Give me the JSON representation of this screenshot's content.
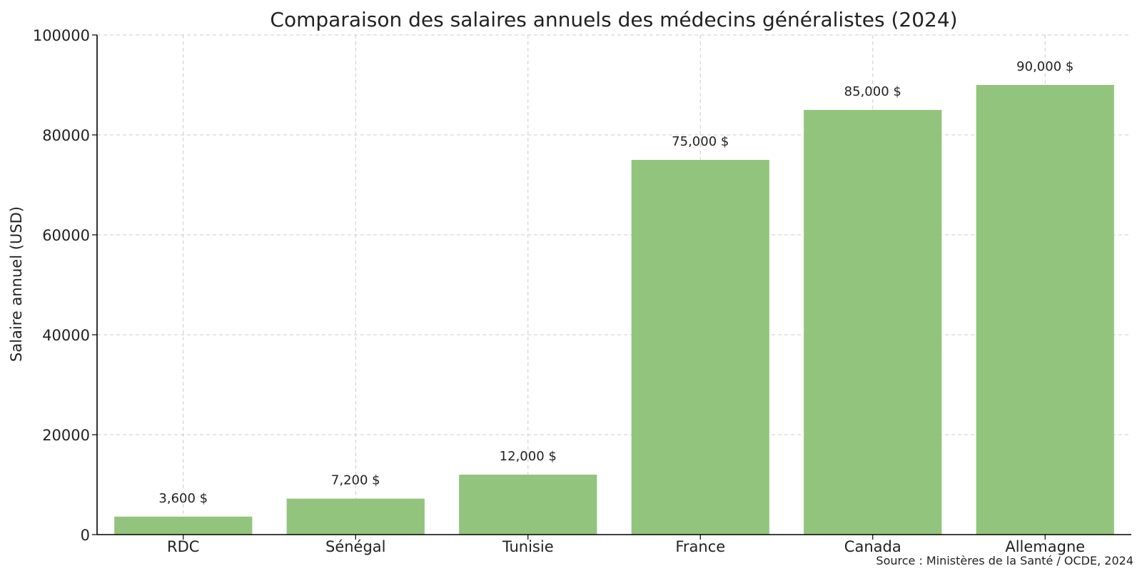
{
  "chart_data": {
    "type": "bar",
    "title": "Comparaison des salaires annuels des médecins généralistes (2024)",
    "xlabel": "",
    "ylabel": "Salaire annuel (USD)",
    "categories": [
      "RDC",
      "Sénégal",
      "Tunisie",
      "France",
      "Canada",
      "Allemagne"
    ],
    "values": [
      3600,
      7200,
      12000,
      75000,
      85000,
      90000
    ],
    "data_labels": [
      "3,600 $",
      "7,200 $",
      "12,000 $",
      "75,000 $",
      "85,000 $",
      "90,000 $"
    ],
    "ylim": [
      0,
      100000
    ],
    "yticks": [
      0,
      20000,
      40000,
      60000,
      80000,
      100000
    ],
    "grid": true,
    "bar_color": "#93c47d",
    "source": "Source : Ministères de la Santé / OCDE, 2024"
  }
}
